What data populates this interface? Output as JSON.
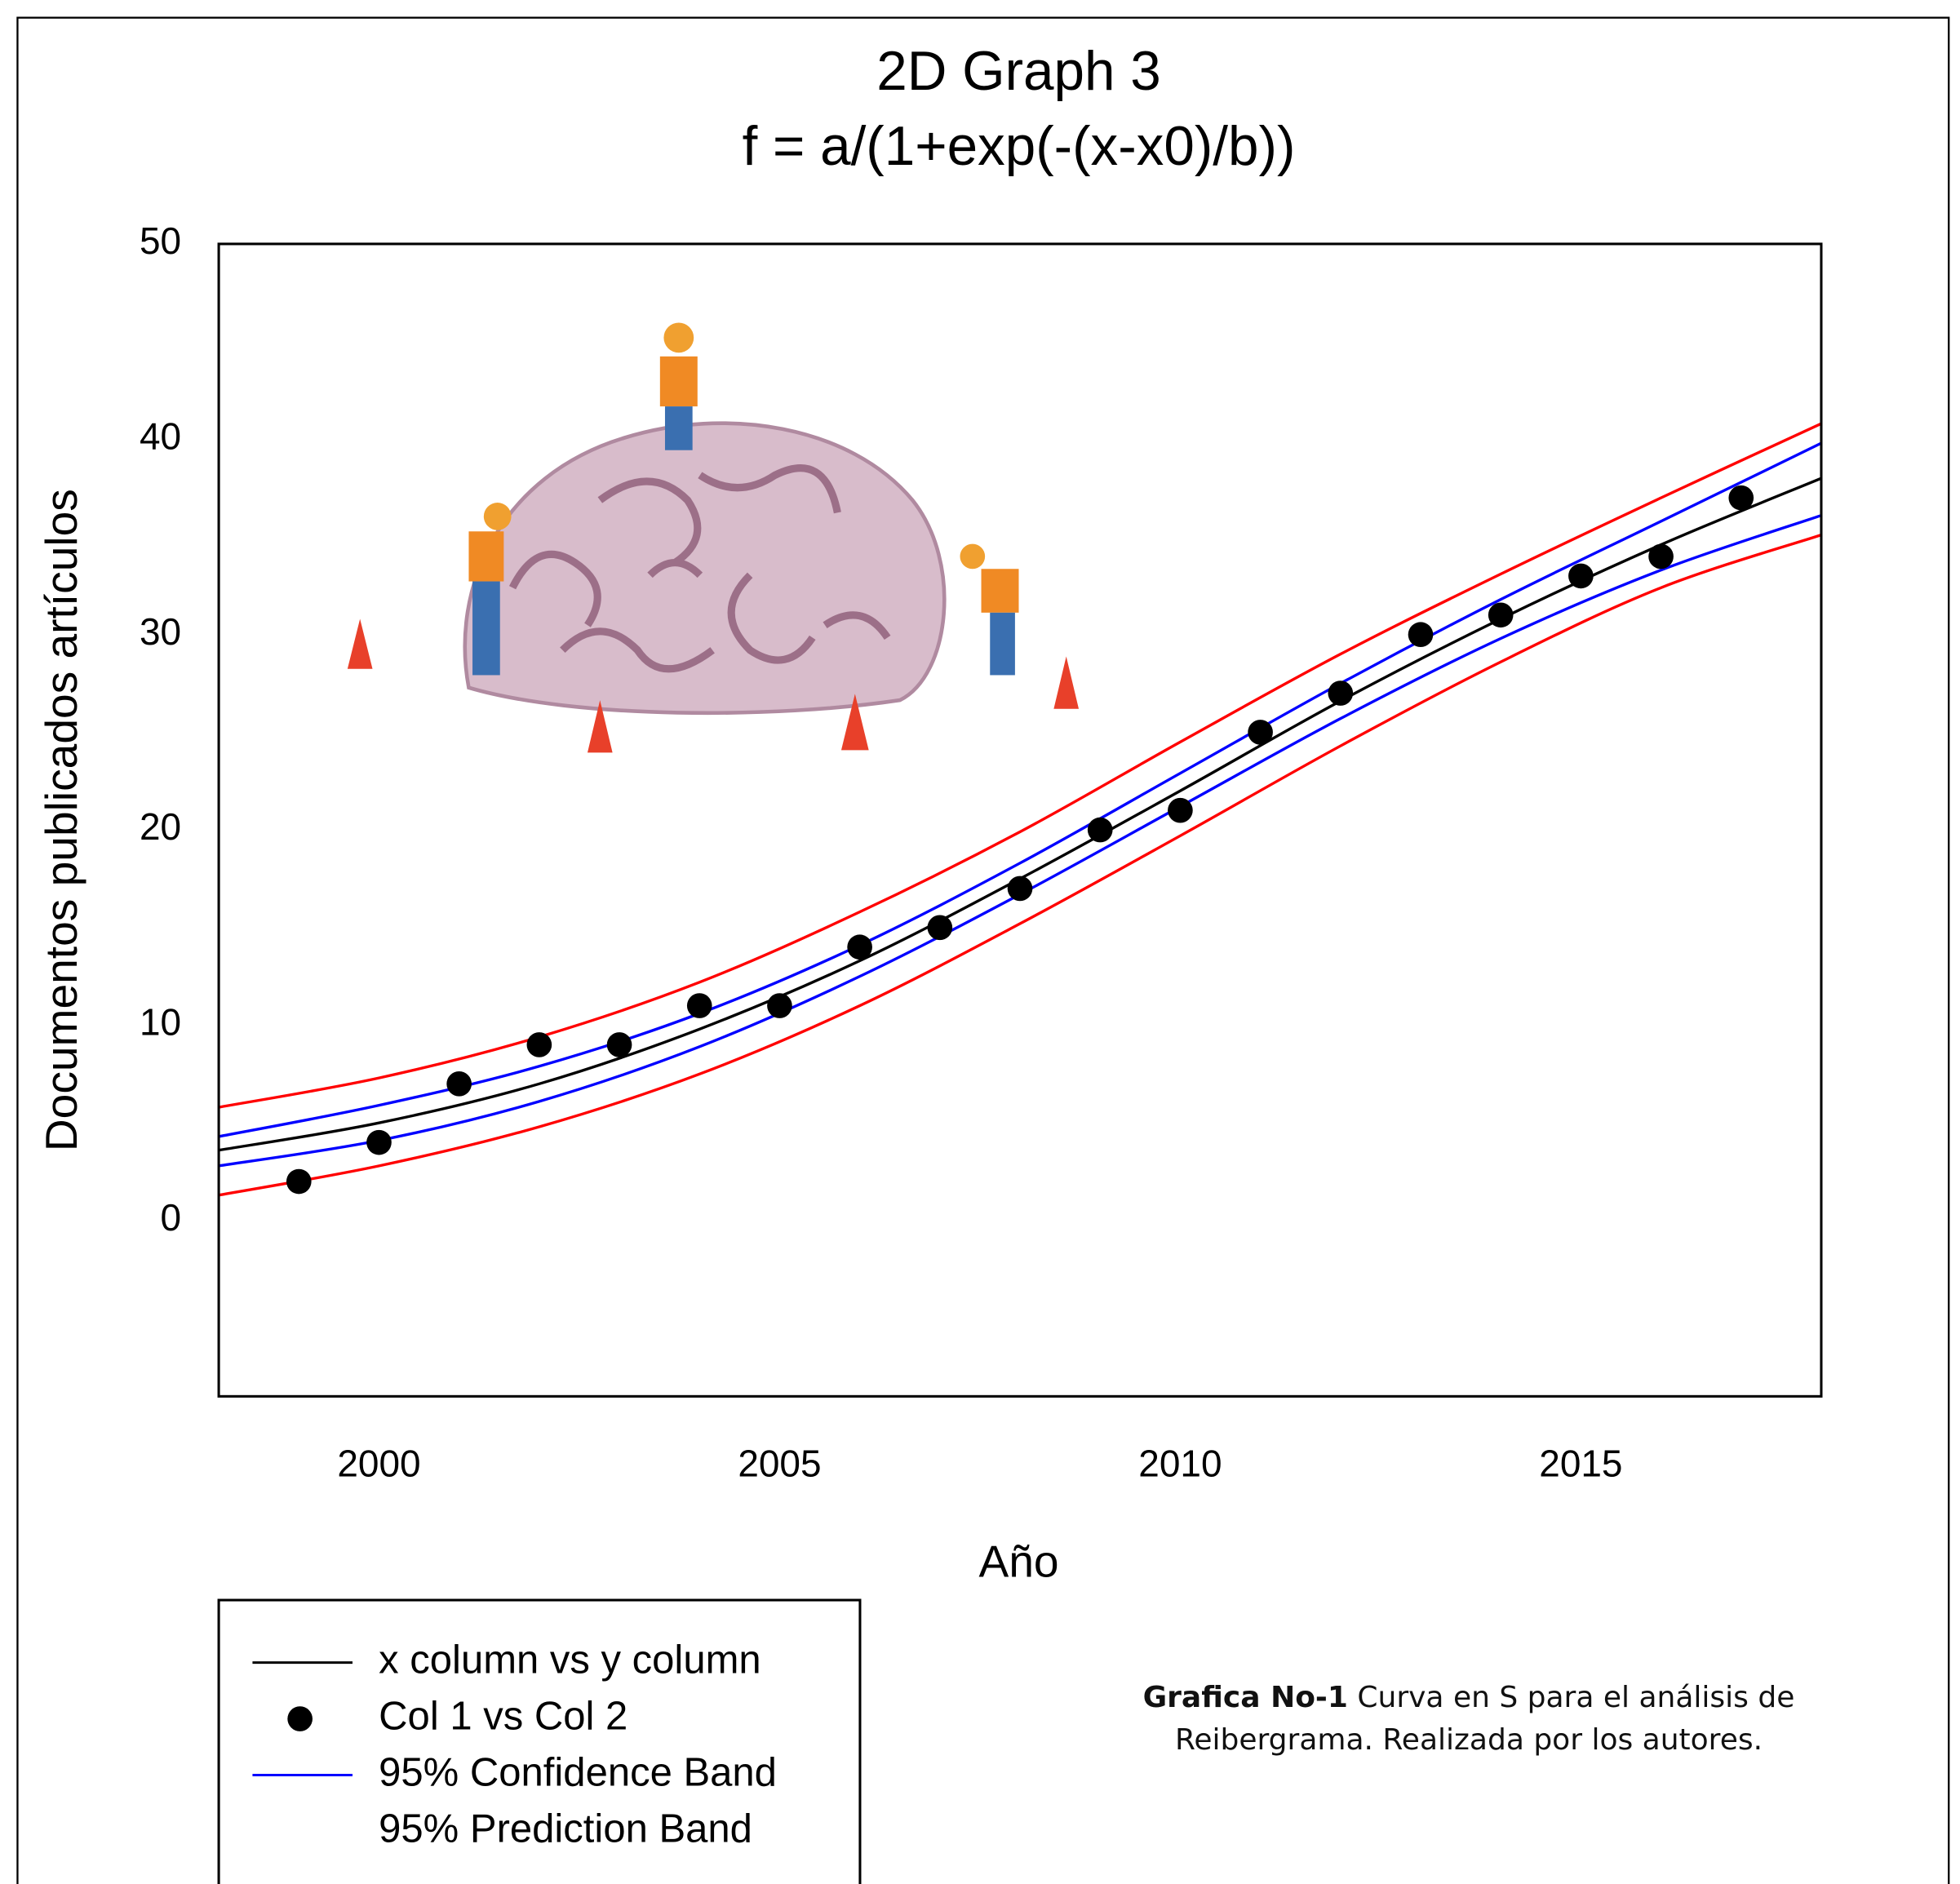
{
  "chart_data": {
    "type": "scatter",
    "title": "2D Graph 3",
    "subtitle": "f = a/(1+exp(-(x-x0)/b))",
    "x_label": "Año",
    "y_label": "Documentos publicados artículos",
    "xlim": [
      1998,
      2018
    ],
    "ylim": [
      -9,
      50
    ],
    "xticks": [
      2000,
      2005,
      2010,
      2015
    ],
    "yticks": [
      0,
      10,
      20,
      30,
      40,
      50
    ],
    "series": [
      {
        "name": "x column vs y column",
        "color": "#000000",
        "x": [
          1998,
          2000,
          2002,
          2004,
          2006,
          2008,
          2010,
          2012,
          2014,
          2016,
          2018
        ],
        "values": [
          3.6,
          5.0,
          7.0,
          9.8,
          13.3,
          17.5,
          22.0,
          26.6,
          30.8,
          34.6,
          38.0
        ]
      },
      {
        "name": "Col 1 vs Col 2",
        "color": "#000000",
        "x": [
          1999,
          2000,
          2001,
          2002,
          2003,
          2004,
          2005,
          2006,
          2007,
          2008,
          2009,
          2010,
          2011,
          2012,
          2013,
          2014,
          2015,
          2016,
          2017
        ],
        "values": [
          2,
          4,
          7,
          9,
          9,
          11,
          11,
          14,
          15,
          17,
          20,
          21,
          25,
          27,
          30,
          31,
          33,
          34,
          37
        ]
      },
      {
        "name": "95% Confidence Band",
        "color": "#0000ff",
        "x": [
          1998,
          2000,
          2002,
          2004,
          2006,
          2008,
          2010,
          2012,
          2014,
          2016,
          2018
        ],
        "upper": [
          4.3,
          5.9,
          7.9,
          10.6,
          14.1,
          18.3,
          22.9,
          27.5,
          31.8,
          35.8,
          39.8
        ],
        "lower": [
          2.8,
          4.1,
          6.1,
          8.9,
          12.5,
          16.7,
          21.2,
          25.7,
          29.8,
          33.3,
          36.1
        ]
      },
      {
        "name": "95% Prediction Band",
        "color": "#ff0000",
        "x": [
          1998,
          2000,
          2002,
          2004,
          2006,
          2008,
          2010,
          2012,
          2014,
          2016,
          2018
        ],
        "upper": [
          5.8,
          7.3,
          9.4,
          12.2,
          15.8,
          19.9,
          24.5,
          29.0,
          33.1,
          37.0,
          40.8
        ],
        "lower": [
          1.3,
          2.8,
          4.8,
          7.5,
          11.0,
          15.2,
          19.7,
          24.3,
          28.6,
          32.4,
          35.1
        ]
      }
    ],
    "caption": {
      "bold": "Grafica No-1",
      "text": "Curva en S para el análisis de Reibergrama. Realizada por los autores."
    }
  }
}
